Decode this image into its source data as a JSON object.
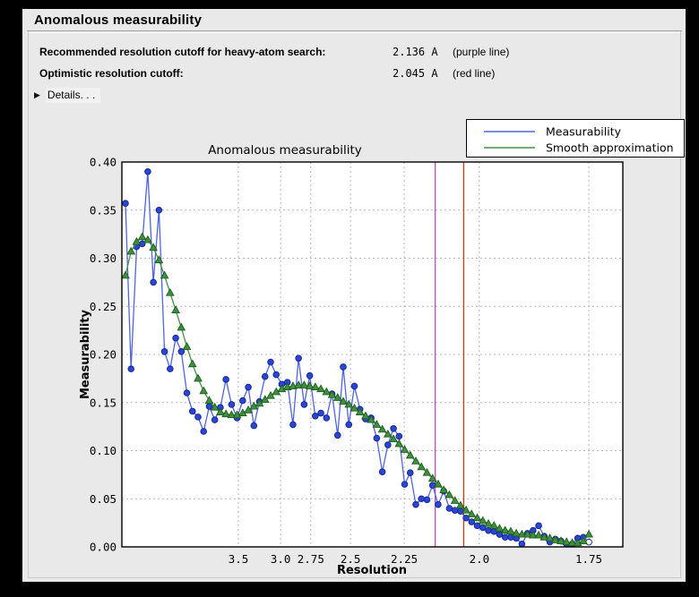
{
  "header": {
    "title": "Anomalous measurability"
  },
  "info_rows": [
    {
      "label": "Recommended resolution cutoff for heavy-atom search:",
      "value": "2.136 A",
      "note": "(purple line)"
    },
    {
      "label": "Optimistic resolution cutoff:",
      "value": "2.045 A",
      "note": "(red line)"
    }
  ],
  "details": {
    "icon": "disclosure-triangle-right-icon",
    "label": "Details. . ."
  },
  "colors": {
    "window_bg": "#e9e9e9",
    "plot_bg": "#ffffff",
    "grid": "#b5b5b5",
    "frame": "#000000",
    "blue_line": "#5064dc",
    "blue_marker": "#2b46cf",
    "blue_marker_edge": "#16289a",
    "green_line": "#449144",
    "green_marker": "#3f8f3f",
    "green_marker_edge": "#1f5c1f",
    "purple_vline": "#c44ac4",
    "red_vline": "#cc3a10"
  },
  "chart_data": {
    "type": "line",
    "title": "Anomalous measurability",
    "xlabel": "Resolution",
    "ylabel": "Measurability",
    "x_axis": {
      "scale": "1/d^2",
      "lim_s2": [
        0.0002,
        0.3503
      ],
      "tick_resolutions_A": [
        3.5,
        3.0,
        2.75,
        2.5,
        2.25,
        2.0,
        1.75
      ],
      "tick_labels": [
        "3.5",
        "3.0",
        "2.75",
        "2.5",
        "2.25",
        "2.0",
        "1.75"
      ]
    },
    "y_axis": {
      "lim": [
        0.0,
        0.4
      ],
      "ticks": [
        0.0,
        0.05,
        0.1,
        0.15,
        0.2,
        0.25,
        0.3,
        0.35,
        0.4
      ],
      "tick_labels": [
        "0.00",
        "0.05",
        "0.10",
        "0.15",
        "0.20",
        "0.25",
        "0.30",
        "0.35",
        "0.40"
      ]
    },
    "grid": true,
    "points_s2": {
      "start": 0.0027,
      "step": 0.0039024,
      "count": 84
    },
    "series": [
      {
        "name": "Measurability",
        "marker": "circle",
        "last_marker_open": true,
        "values": [
          0.357,
          0.185,
          0.312,
          0.315,
          0.39,
          0.275,
          0.35,
          0.203,
          0.185,
          0.217,
          0.203,
          0.16,
          0.141,
          0.135,
          0.12,
          0.146,
          0.132,
          0.145,
          0.174,
          0.148,
          0.134,
          0.152,
          0.166,
          0.126,
          0.151,
          0.177,
          0.192,
          0.179,
          0.169,
          0.171,
          0.127,
          0.196,
          0.148,
          0.178,
          0.136,
          0.139,
          0.134,
          0.159,
          0.116,
          0.187,
          0.127,
          0.167,
          0.143,
          0.133,
          0.134,
          0.113,
          0.078,
          0.106,
          0.123,
          0.115,
          0.065,
          0.077,
          0.044,
          0.05,
          0.049,
          0.064,
          0.044,
          0.058,
          0.04,
          0.038,
          0.037,
          0.03,
          0.026,
          0.022,
          0.02,
          0.017,
          0.016,
          0.013,
          0.01,
          0.01,
          0.009,
          0.003,
          0.014,
          0.017,
          0.022,
          0.011,
          0.005,
          0.008,
          0.006,
          0.003,
          0.003,
          0.009,
          0.01,
          0.005
        ]
      },
      {
        "name": "Smooth approximation",
        "marker": "triangle",
        "last_marker_open": false,
        "values": [
          0.282,
          0.307,
          0.317,
          0.322,
          0.319,
          0.311,
          0.298,
          0.282,
          0.264,
          0.246,
          0.228,
          0.208,
          0.19,
          0.175,
          0.162,
          0.152,
          0.145,
          0.14,
          0.138,
          0.137,
          0.137,
          0.139,
          0.142,
          0.146,
          0.149,
          0.153,
          0.157,
          0.161,
          0.164,
          0.166,
          0.167,
          0.168,
          0.168,
          0.167,
          0.166,
          0.164,
          0.161,
          0.158,
          0.155,
          0.151,
          0.148,
          0.144,
          0.14,
          0.136,
          0.132,
          0.127,
          0.122,
          0.117,
          0.112,
          0.107,
          0.101,
          0.095,
          0.089,
          0.083,
          0.077,
          0.071,
          0.065,
          0.059,
          0.054,
          0.048,
          0.043,
          0.038,
          0.034,
          0.03,
          0.027,
          0.024,
          0.022,
          0.019,
          0.017,
          0.016,
          0.014,
          0.013,
          0.013,
          0.012,
          0.012,
          0.01,
          0.009,
          0.007,
          0.006,
          0.005,
          0.004,
          0.004,
          0.006,
          0.013
        ]
      }
    ],
    "vlines": [
      {
        "name": "heavy-atom-cutoff",
        "resolution_A": 2.136,
        "color_key": "purple_vline"
      },
      {
        "name": "optimistic-cutoff",
        "resolution_A": 2.045,
        "color_key": "red_vline"
      }
    ],
    "legend": {
      "position": "upper right",
      "entries": [
        "Measurability",
        "Smooth approximation"
      ]
    }
  }
}
